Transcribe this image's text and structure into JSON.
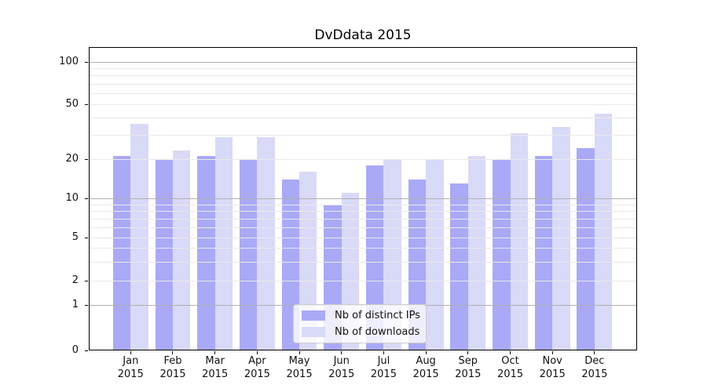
{
  "title": "DvDdata 2015",
  "legend": {
    "items": [
      {
        "label": "Nb of distinct IPs",
        "series": "ips"
      },
      {
        "label": "Nb of downloads",
        "series": "downloads"
      }
    ]
  },
  "colors": {
    "ips": "#a9a9f6",
    "downloads": "#d9d9f8",
    "grid_major": "#b0b0b0",
    "grid_minor": "#e9e9e9",
    "axis": "#000000",
    "text": "#111111",
    "legend_border": "#cccccc"
  },
  "chart_data": {
    "type": "bar",
    "title": "DvDdata 2015",
    "categories": [
      "Jan 2015",
      "Feb 2015",
      "Mar 2015",
      "Apr 2015",
      "May 2015",
      "Jun 2015",
      "Jul 2015",
      "Aug 2015",
      "Sep 2015",
      "Oct 2015",
      "Nov 2015",
      "Dec 2015"
    ],
    "series": [
      {
        "name": "Nb of distinct IPs",
        "color_key": "ips",
        "values": [
          21,
          20,
          21,
          20,
          14,
          9,
          18,
          14,
          13,
          20,
          21,
          24
        ]
      },
      {
        "name": "Nb of downloads",
        "color_key": "downloads",
        "values": [
          36,
          23,
          29,
          29,
          16,
          11,
          20,
          20,
          21,
          31,
          34,
          43
        ]
      }
    ],
    "yscale": "symlog",
    "ylim": [
      0,
      130
    ],
    "yticks": [
      0,
      1,
      2,
      5,
      10,
      20,
      50,
      100
    ],
    "major_gridlines": [
      1,
      10,
      100
    ],
    "minor_gridlines": [
      2,
      3,
      4,
      5,
      6,
      7,
      8,
      9,
      20,
      30,
      40,
      50,
      60,
      70,
      80,
      90
    ],
    "grid": true,
    "legend_position": "lower center"
  }
}
